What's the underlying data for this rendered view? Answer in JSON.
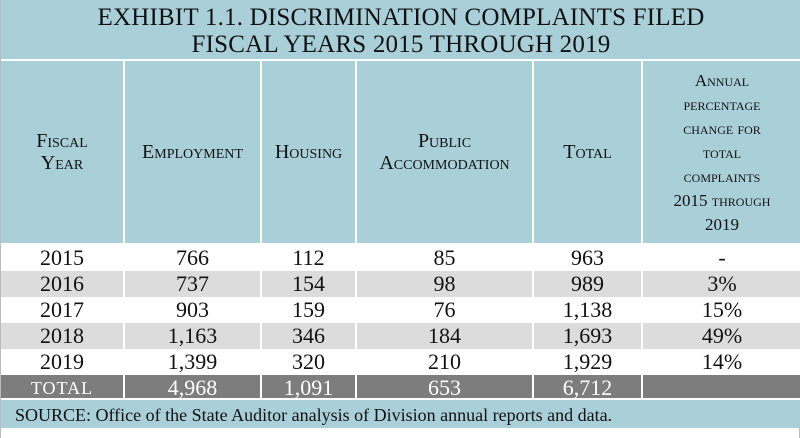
{
  "title": {
    "line1": "EXHIBIT 1.1. DISCRIMINATION COMPLAINTS FILED",
    "line2": "FISCAL YEARS 2015 THROUGH 2019"
  },
  "headers": {
    "fiscal_year": [
      "Fiscal",
      "Year"
    ],
    "employment": "Employment",
    "housing": "Housing",
    "public_accommodation": [
      "Public",
      "Accommodation"
    ],
    "total": "Total",
    "annual_change": [
      "Annual",
      "percentage",
      "change for",
      "total",
      "complaints",
      "2015 through",
      "2019"
    ]
  },
  "rows": [
    [
      "2015",
      "766",
      "112",
      "85",
      "963",
      "-"
    ],
    [
      "2016",
      "737",
      "154",
      "98",
      "989",
      "3%"
    ],
    [
      "2017",
      "903",
      "159",
      "76",
      "1,138",
      "15%"
    ],
    [
      "2018",
      "1,163",
      "346",
      "184",
      "1,693",
      "49%"
    ],
    [
      "2019",
      "1,399",
      "320",
      "210",
      "1,929",
      "14%"
    ]
  ],
  "totals": [
    "TOTAL",
    "4,968",
    "1,091",
    "653",
    "6,712",
    ""
  ],
  "source": "SOURCE: Office of the State Auditor analysis of Division annual reports and data."
}
